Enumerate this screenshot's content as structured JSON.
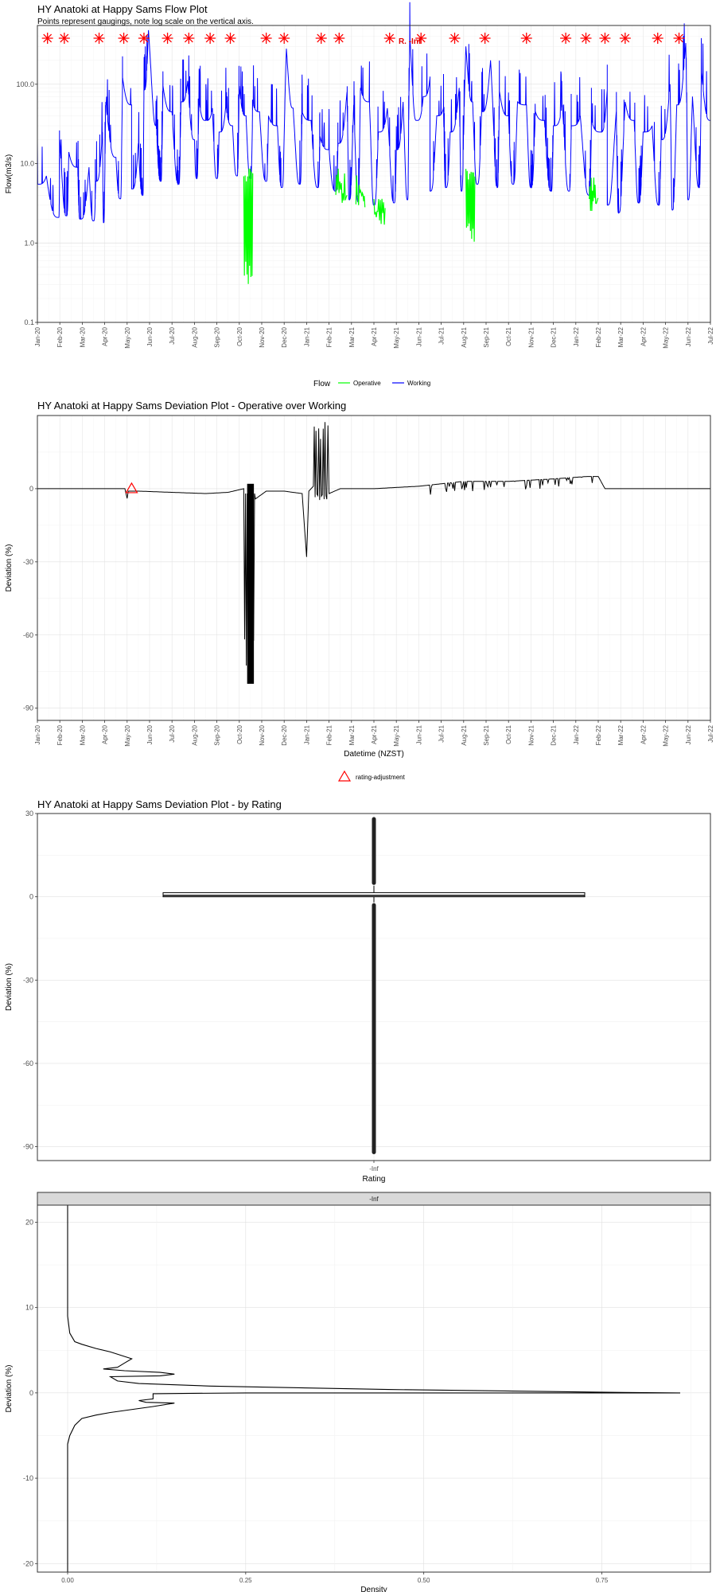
{
  "chart_data": [
    {
      "type": "line",
      "title": "HY Anatoki at Happy Sams Flow Plot",
      "subtitle": "Points represent gaugings, note log scale on the vertical axis.",
      "xlabel": "",
      "ylabel": "Flow(m3/s)",
      "y_scale": "log",
      "ylim": [
        0.1,
        550
      ],
      "y_ticks": [
        0.1,
        1,
        10,
        100
      ],
      "y_tick_labels": [
        "0.1",
        "1.0",
        "10.0",
        "100.0"
      ],
      "x_tick_labels": [
        "Jan-20",
        "Feb-20",
        "Mar-20",
        "Apr-20",
        "May-20",
        "Jun-20",
        "Jul-20",
        "Aug-20",
        "Sep-20",
        "Oct-20",
        "Nov-20",
        "Dec-20",
        "Jan-21",
        "Feb-21",
        "Mar-21",
        "Apr-21",
        "May-21",
        "Jun-21",
        "Jul-21",
        "Aug-21",
        "Sep-21",
        "Oct-21",
        "Nov-21",
        "Dec-21",
        "Jan-22",
        "Feb-22",
        "Mar-22",
        "Apr-22",
        "May-22",
        "Jun-22",
        "Jul-22"
      ],
      "gauging_months": [
        0.45,
        1.2,
        2.75,
        3.85,
        4.75,
        5.8,
        6.75,
        7.7,
        8.6,
        10.2,
        11.0,
        12.65,
        13.45,
        15.7,
        17.1,
        18.6,
        19.95,
        21.8,
        23.55,
        24.45,
        25.3,
        26.2,
        27.65,
        28.6
      ],
      "annotations": [
        "R. -Inf"
      ],
      "grid": true,
      "legend": {
        "position": "bottom",
        "title": "Flow",
        "entries": [
          "Operative",
          "Working"
        ]
      },
      "series": [
        {
          "name": "Working",
          "color": "#0000FF",
          "peaks": [
            [
              0.0,
              5.5
            ],
            [
              0.4,
              7
            ],
            [
              1.0,
              20
            ],
            [
              1.4,
              14
            ],
            [
              1.8,
              9
            ],
            [
              2.3,
              9
            ],
            [
              2.6,
              6
            ],
            [
              2.9,
              25
            ],
            [
              3.05,
              60
            ],
            [
              3.5,
              12
            ],
            [
              3.8,
              120
            ],
            [
              4.2,
              55
            ],
            [
              4.5,
              18
            ],
            [
              4.75,
              85
            ],
            [
              4.95,
              480
            ],
            [
              5.3,
              30
            ],
            [
              5.6,
              95
            ],
            [
              6.0,
              45
            ],
            [
              6.4,
              60
            ],
            [
              6.7,
              110
            ],
            [
              7.0,
              20
            ],
            [
              7.2,
              65
            ],
            [
              7.5,
              35
            ],
            [
              7.8,
              50
            ],
            [
              8.1,
              25
            ],
            [
              8.4,
              55
            ],
            [
              8.7,
              30
            ],
            [
              9.0,
              95
            ],
            [
              9.3,
              40
            ],
            [
              9.6,
              60
            ],
            [
              9.9,
              45
            ],
            [
              10.3,
              40
            ],
            [
              10.7,
              30
            ],
            [
              11.1,
              280
            ],
            [
              11.4,
              50
            ],
            [
              11.8,
              45
            ],
            [
              12.2,
              35
            ],
            [
              12.6,
              22
            ],
            [
              13.0,
              15
            ],
            [
              13.4,
              18
            ],
            [
              13.8,
              80
            ],
            [
              14.1,
              55
            ],
            [
              14.4,
              90
            ],
            [
              14.8,
              60
            ],
            [
              15.2,
              25
            ],
            [
              15.6,
              50
            ],
            [
              16.0,
              15
            ],
            [
              16.3,
              60
            ],
            [
              16.6,
              400
            ],
            [
              16.9,
              35
            ],
            [
              17.2,
              70
            ],
            [
              17.5,
              120
            ],
            [
              17.8,
              40
            ],
            [
              18.1,
              50
            ],
            [
              18.4,
              25
            ],
            [
              18.8,
              90
            ],
            [
              19.1,
              300
            ],
            [
              19.4,
              60
            ],
            [
              19.8,
              45
            ],
            [
              20.2,
              200
            ],
            [
              20.6,
              80
            ],
            [
              21.0,
              40
            ],
            [
              21.4,
              60
            ],
            [
              21.8,
              55
            ],
            [
              22.2,
              45
            ],
            [
              22.6,
              35
            ],
            [
              23.0,
              30
            ],
            [
              23.4,
              55
            ],
            [
              23.8,
              30
            ],
            [
              24.2,
              40
            ],
            [
              24.7,
              35
            ],
            [
              25.1,
              25
            ],
            [
              25.4,
              85
            ],
            [
              25.8,
              45
            ],
            [
              26.2,
              60
            ],
            [
              26.6,
              35
            ],
            [
              27.0,
              25
            ],
            [
              27.4,
              30
            ],
            [
              27.8,
              20
            ],
            [
              28.2,
              100
            ],
            [
              28.5,
              55
            ],
            [
              28.9,
              330
            ],
            [
              29.2,
              70
            ],
            [
              29.6,
              140
            ],
            [
              30.0,
              35
            ]
          ],
          "troughs": [
            [
              0.95,
              2.1
            ],
            [
              1.3,
              2.2
            ],
            [
              1.9,
              2.0
            ],
            [
              2.5,
              1.9
            ],
            [
              2.95,
              1.8
            ],
            [
              3.7,
              3.6
            ],
            [
              4.2,
              4.8
            ],
            [
              4.7,
              4.0
            ],
            [
              5.5,
              6.0
            ],
            [
              6.3,
              5.5
            ],
            [
              7.1,
              6.5
            ],
            [
              8.0,
              6.5
            ],
            [
              8.9,
              7.0
            ],
            [
              9.5,
              6.5
            ],
            [
              10.2,
              6.0
            ],
            [
              10.9,
              5.0
            ],
            [
              11.7,
              5.5
            ],
            [
              12.5,
              5.0
            ],
            [
              13.3,
              4.5
            ],
            [
              13.9,
              3.5
            ],
            [
              14.3,
              3.3
            ],
            [
              15.0,
              3.0
            ],
            [
              15.9,
              3.2
            ],
            [
              16.5,
              3.5
            ],
            [
              17.5,
              4.5
            ],
            [
              18.2,
              5.0
            ],
            [
              18.9,
              4.5
            ],
            [
              19.6,
              5.5
            ],
            [
              20.5,
              5.0
            ],
            [
              21.2,
              5.5
            ],
            [
              22.0,
              5.0
            ],
            [
              22.9,
              4.5
            ],
            [
              23.7,
              4.5
            ],
            [
              24.6,
              4.0
            ],
            [
              25.4,
              3.0
            ],
            [
              25.9,
              2.4
            ],
            [
              26.8,
              3.2
            ],
            [
              27.7,
              3.0
            ],
            [
              28.3,
              2.6
            ],
            [
              29.0,
              3.5
            ],
            [
              29.5,
              5.0
            ],
            [
              30.0,
              8.0
            ]
          ]
        },
        {
          "name": "Operative",
          "color": "#00FF00",
          "segments": [
            [
              9.2,
              9.6,
              8,
              0.27
            ],
            [
              13.3,
              13.8,
              4.5,
              3.5
            ],
            [
              14.2,
              14.6,
              4.0,
              3.0
            ],
            [
              15.0,
              15.5,
              3.5,
              1.05
            ],
            [
              19.1,
              19.5,
              8.0,
              0.75
            ],
            [
              24.6,
              25.0,
              3.5,
              2.9
            ]
          ]
        }
      ]
    },
    {
      "type": "line",
      "title": "HY Anatoki at Happy Sams Deviation Plot - Operative over Working",
      "xlabel": "Datetime (NZST)",
      "ylabel": "Deviation (%)",
      "ylim": [
        -95,
        30
      ],
      "y_ticks": [
        -90,
        -60,
        -30,
        0
      ],
      "x_tick_labels": [
        "Jan-20",
        "Feb-20",
        "Mar-20",
        "Apr-20",
        "May-20",
        "Jun-20",
        "Jul-20",
        "Aug-20",
        "Sep-20",
        "Oct-20",
        "Nov-20",
        "Dec-20",
        "Jan-21",
        "Feb-21",
        "Mar-21",
        "Apr-21",
        "May-21",
        "Jun-21",
        "Jul-21",
        "Aug-21",
        "Sep-21",
        "Oct-21",
        "Nov-21",
        "Dec-21",
        "Jan-22",
        "Feb-22",
        "Mar-22",
        "Apr-22",
        "May-22",
        "Jun-22",
        "Jul-22"
      ],
      "grid": true,
      "legend": {
        "position": "bottom",
        "entries": [
          "rating-adjustment"
        ]
      },
      "markers": [
        {
          "label": "rating-adjustment",
          "x_month": 4.2,
          "y": 0
        }
      ],
      "series": [
        {
          "name": "",
          "color": "#000000",
          "points": [
            [
              0,
              0
            ],
            [
              3.9,
              0
            ],
            [
              4.0,
              -4
            ],
            [
              4.05,
              -1
            ],
            [
              4.5,
              -1
            ],
            [
              6.0,
              -1.5
            ],
            [
              7.5,
              -2
            ],
            [
              8.5,
              -1.5
            ],
            [
              9.2,
              0
            ],
            [
              9.5,
              -92
            ],
            [
              9.6,
              -5
            ],
            [
              10.2,
              -1
            ],
            [
              11.0,
              -1
            ],
            [
              11.8,
              -2
            ],
            [
              12.0,
              -28
            ],
            [
              12.1,
              -1
            ],
            [
              12.3,
              1
            ],
            [
              12.5,
              28
            ],
            [
              12.7,
              -5
            ],
            [
              12.9,
              26
            ],
            [
              13.0,
              -2
            ],
            [
              13.5,
              0
            ],
            [
              15.0,
              0
            ],
            [
              17.0,
              1
            ],
            [
              19.0,
              3
            ],
            [
              21.0,
              3
            ],
            [
              23.0,
              4
            ],
            [
              24.5,
              5
            ],
            [
              25.0,
              5
            ],
            [
              25.3,
              0
            ],
            [
              30.0,
              0
            ]
          ]
        }
      ]
    },
    {
      "type": "box",
      "title": "HY Anatoki at Happy Sams Deviation Plot - by Rating",
      "xlabel": "Rating",
      "ylabel": "Deviation (%)",
      "categories": [
        "-Inf"
      ],
      "ylim": [
        -95,
        30
      ],
      "y_ticks": [
        -90,
        -60,
        -30,
        0,
        30
      ],
      "box": {
        "q1": 0,
        "median": 0.5,
        "q3": 1.5,
        "whisker_low": -2,
        "whisker_high": 4,
        "outlier_range_low": [
          -92,
          -3
        ],
        "outlier_range_high": [
          5,
          28
        ]
      },
      "grid": true
    },
    {
      "type": "line",
      "title": "",
      "facet_label": "-Inf",
      "xlabel": "Density",
      "ylabel": "Deviation (%)",
      "xlim": [
        0,
        0.9
      ],
      "x_ticks": [
        0.0,
        0.25,
        0.5,
        0.75
      ],
      "x_tick_labels": [
        "0.00",
        "0.25",
        "0.50",
        "0.75"
      ],
      "ylim": [
        -21,
        22
      ],
      "y_ticks": [
        -20,
        -10,
        0,
        10,
        20
      ],
      "grid": true,
      "series": [
        {
          "name": "",
          "color": "#000000",
          "points": [
            [
              0.0,
              22
            ],
            [
              0.0,
              9
            ],
            [
              0.003,
              7
            ],
            [
              0.01,
              6
            ],
            [
              0.02,
              5.7
            ],
            [
              0.04,
              5.2
            ],
            [
              0.06,
              4.8
            ],
            [
              0.09,
              4.0
            ],
            [
              0.08,
              3.5
            ],
            [
              0.07,
              3.0
            ],
            [
              0.05,
              2.8
            ],
            [
              0.08,
              2.6
            ],
            [
              0.13,
              2.4
            ],
            [
              0.15,
              2.2
            ],
            [
              0.13,
              2.0
            ],
            [
              0.06,
              1.9
            ],
            [
              0.07,
              1.4
            ],
            [
              0.1,
              1.1
            ],
            [
              0.2,
              0.8
            ],
            [
              0.45,
              0.4
            ],
            [
              0.78,
              0.05
            ],
            [
              0.86,
              0.0
            ],
            [
              0.6,
              0.0
            ],
            [
              0.25,
              0.0
            ],
            [
              0.12,
              -0.1
            ],
            [
              0.12,
              -0.7
            ],
            [
              0.1,
              -0.9
            ],
            [
              0.11,
              -1.1
            ],
            [
              0.15,
              -1.2
            ],
            [
              0.12,
              -1.6
            ],
            [
              0.06,
              -2.3
            ],
            [
              0.04,
              -2.6
            ],
            [
              0.02,
              -3.0
            ],
            [
              0.01,
              -3.8
            ],
            [
              0.003,
              -5.0
            ],
            [
              0.0,
              -6
            ],
            [
              0.0,
              -21
            ]
          ]
        }
      ]
    }
  ]
}
